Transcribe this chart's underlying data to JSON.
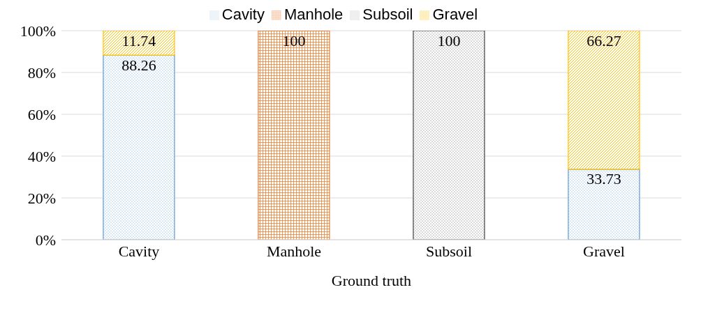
{
  "chart_data": {
    "type": "bar",
    "stacked": true,
    "xlabel": "Ground truth",
    "categories": [
      "Cavity",
      "Manhole",
      "Subsoil",
      "Gravel"
    ],
    "series": [
      {
        "name": "Cavity",
        "color": "#5b9bd5",
        "values": [
          88.26,
          null,
          null,
          33.73
        ]
      },
      {
        "name": "Manhole",
        "color": "#ed7d31",
        "values": [
          null,
          100,
          null,
          null
        ]
      },
      {
        "name": "Subsoil",
        "color": "#404040",
        "values": [
          null,
          null,
          100,
          null
        ]
      },
      {
        "name": "Gravel",
        "color": "#ffc000",
        "values": [
          11.74,
          null,
          null,
          66.27
        ]
      }
    ],
    "ylim": [
      0,
      100
    ],
    "yticks": [
      {
        "value": 0,
        "label": "0%"
      },
      {
        "value": 20,
        "label": "20%"
      },
      {
        "value": 40,
        "label": "40%"
      },
      {
        "value": 60,
        "label": "60%"
      },
      {
        "value": 80,
        "label": "80%"
      },
      {
        "value": 100,
        "label": "100%"
      }
    ],
    "grid": "y",
    "legend": "top",
    "data_labels": true
  }
}
